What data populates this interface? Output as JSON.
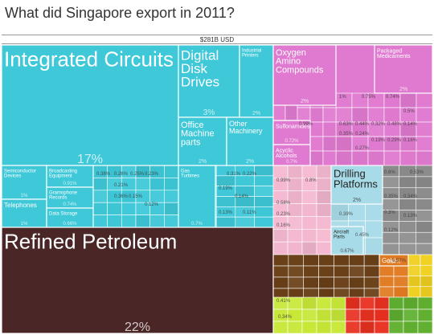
{
  "title": "What did Singapore export in 2011?",
  "total_label": "$281B USD",
  "colors": {
    "machinery": "#3ec8d8",
    "petroleum": "#4a2626",
    "chemicals": "#e07ad0",
    "transport": "#a8dbe8",
    "instruments": "#8e8e8e",
    "pink_misc": "#f4b8d0",
    "brown_misc": "#6a4018",
    "metals": "#e07a20",
    "yellow_green": "#c8e838",
    "red": "#e83020",
    "gold_bright": "#f0d020",
    "green": "#60b030"
  },
  "chart_data": {
    "type": "treemap",
    "title": "What did Singapore export in 2011?",
    "total": "$281B USD",
    "items": [
      {
        "name": "Integrated Circuits",
        "share": "17%",
        "group": "machinery"
      },
      {
        "name": "Digital Disk Drives",
        "share": "3%",
        "group": "machinery"
      },
      {
        "name": "Industrial Printers",
        "share": "2%",
        "group": "machinery"
      },
      {
        "name": "Office Machine parts",
        "share": "2%",
        "group": "machinery"
      },
      {
        "name": "Other Machinery",
        "share": "2%",
        "group": "machinery"
      },
      {
        "name": "Semiconductor Devices",
        "share": "1%",
        "group": "machinery"
      },
      {
        "name": "Telephones",
        "share": "1%",
        "group": "machinery"
      },
      {
        "name": "Broadcasting Equipment",
        "share": "0.91%",
        "group": "machinery"
      },
      {
        "name": "Gramophone Records",
        "share": "0.74%",
        "group": "machinery"
      },
      {
        "name": "Data Storage",
        "share": "0.66%",
        "group": "machinery"
      },
      {
        "name": "Gas Turbines",
        "share": "0.7%",
        "group": "machinery"
      },
      {
        "name": "Refined Petroleum",
        "share": "22%",
        "group": "petroleum"
      },
      {
        "name": "Oxygen Amino Compounds",
        "share": "2%",
        "group": "chemicals"
      },
      {
        "name": "Packaged Medicaments",
        "share": "2%",
        "group": "chemicals"
      },
      {
        "name": "Sulfonamides",
        "share": "0.72%",
        "group": "chemicals"
      },
      {
        "name": "Acyclic Alcohols",
        "share": "0.7%",
        "group": "chemicals"
      },
      {
        "name": "Drilling Platforms",
        "share": "2%",
        "group": "transport"
      },
      {
        "name": "Aircraft Parts",
        "share": "0.67%",
        "group": "transport"
      },
      {
        "name": "Gold",
        "share": "0.67%",
        "group": "metals"
      }
    ]
  },
  "tiles": [
    {
      "k": "ic",
      "c": "machinery",
      "label": [
        "Integrated Circuits"
      ],
      "fs": 26,
      "share": "17%",
      "sfs": 16
    },
    {
      "k": "dd",
      "c": "machinery",
      "label": [
        "Digital",
        "Disk",
        "Drives"
      ],
      "fs": 17,
      "share": "3%",
      "sfs": 10
    },
    {
      "k": "ip",
      "c": "machinery",
      "label": [
        "Industrial",
        "Printers"
      ],
      "fs": 6,
      "share": "2%",
      "sfs": 7
    },
    {
      "k": "om",
      "c": "machinery",
      "label": [
        "Office",
        "Machine",
        "parts"
      ],
      "fs": 11,
      "share": "2%",
      "sfs": 7
    },
    {
      "k": "oth",
      "c": "machinery",
      "label": [
        "Other",
        "Machinery"
      ],
      "fs": 9,
      "share": "2%",
      "sfs": 7
    },
    {
      "k": "sd",
      "c": "machinery",
      "label": [
        "Semiconductor",
        "Devices"
      ],
      "fs": 6,
      "share": "1%",
      "sfs": 6
    },
    {
      "k": "tel",
      "c": "machinery",
      "label": [
        "Telephones"
      ],
      "fs": 8,
      "share": "1%",
      "sfs": 6
    },
    {
      "k": "be",
      "c": "machinery",
      "label": [
        "Broadcasting",
        "Equipment"
      ],
      "fs": 6,
      "share": "0.91%",
      "sfs": 6
    },
    {
      "k": "gr",
      "c": "machinery",
      "label": [
        "Gramophone",
        "Records"
      ],
      "fs": 6,
      "share": "0.74%",
      "sfs": 6
    },
    {
      "k": "ds",
      "c": "machinery",
      "label": [
        "Data Storage"
      ],
      "fs": 6,
      "share": "0.66%",
      "sfs": 6
    },
    {
      "k": "gt",
      "c": "machinery",
      "label": [
        "Gas",
        "Turbines"
      ],
      "fs": 6,
      "share": "0.7%",
      "sfs": 6
    },
    {
      "k": "rp",
      "c": "petroleum",
      "label": [
        "Refined Petroleum"
      ],
      "fs": 26,
      "share": "22%",
      "sfs": 16
    },
    {
      "k": "ox",
      "c": "chemicals",
      "label": [
        "Oxygen",
        "Amino",
        "Compounds"
      ],
      "fs": 11,
      "share": "2%",
      "sfs": 7
    },
    {
      "k": "pm",
      "c": "chemicals",
      "label": [
        "Packaged",
        "Medicaments"
      ],
      "fs": 7,
      "share": "2%",
      "sfs": 7
    },
    {
      "k": "su",
      "c": "chemicals",
      "label": [
        "Sulfonamides"
      ],
      "fs": 7,
      "share": "0.72%",
      "sfs": 6
    },
    {
      "k": "aa",
      "c": "chemicals",
      "label": [
        "Acyclic",
        "Alcohols"
      ],
      "fs": 7,
      "share": "0.7%",
      "sfs": 6
    },
    {
      "k": "dp",
      "c": "transport",
      "label": [
        "Drilling",
        "Platforms"
      ],
      "fs": 13,
      "share": "2%",
      "sfs": 7
    },
    {
      "k": "ap",
      "c": "transport",
      "label": [
        "Aircraft",
        "Parts"
      ],
      "fs": 6,
      "share": "0.67%",
      "sfs": 6
    },
    {
      "k": "gold",
      "c": "metals",
      "label": [
        "Gold"
      ],
      "fs": 8,
      "share": "0.67%",
      "sfs": 6
    }
  ],
  "small_shares": [
    [
      "1%",
      "0.75%",
      "0.74%",
      "0.63%",
      "0.44%",
      "0.32%",
      "0.35%",
      "0.24%",
      "0.19%",
      "0.29%",
      "0.16%",
      "0.27%",
      "0.48%",
      "0.14%",
      "0.5%",
      "0.99%"
    ],
    [
      "0.38%",
      "0.26%",
      "0.25%",
      "0.23%",
      "0.21%",
      "0.36%",
      "0.15%",
      "0.12%",
      "0.31%",
      "0.22%",
      "0.19%",
      "0.14%",
      "0.13%",
      "0.11%"
    ],
    [
      "0.6%",
      "0.53%",
      "0.35%",
      "0.34%",
      "0.3%",
      "0.13%",
      "0.12%",
      "0.99%",
      "0.8%",
      "0.58%",
      "0.23%",
      "0.16%",
      "0.39%",
      "0.45%",
      "0.57%",
      "0.41%",
      "0.34%"
    ]
  ]
}
